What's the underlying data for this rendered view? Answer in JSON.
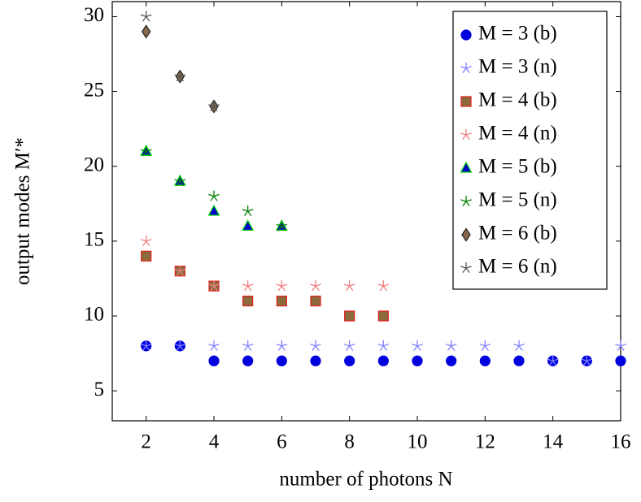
{
  "chart_data": {
    "type": "scatter",
    "xlabel": "number of photons N",
    "ylabel": "output modes M′*",
    "xlim": [
      1,
      16
    ],
    "ylim": [
      3,
      31
    ],
    "xticks": [
      2,
      4,
      6,
      8,
      10,
      12,
      14,
      16
    ],
    "yticks": [
      5,
      10,
      15,
      20,
      25,
      30
    ],
    "legend": "upper right",
    "series": [
      {
        "name": "M = 3 (b)",
        "marker": "circle",
        "color": "#0000dd",
        "edgecolor": "#0000dd",
        "x": [
          2,
          3,
          4,
          5,
          6,
          7,
          8,
          9,
          10,
          11,
          12,
          13,
          14,
          15,
          16
        ],
        "values": [
          8,
          8,
          7,
          7,
          7,
          7,
          7,
          7,
          7,
          7,
          7,
          7,
          7,
          7,
          7
        ]
      },
      {
        "name": "M = 3 (n)",
        "marker": "star",
        "color": "#8080ff",
        "edgecolor": "#8080ff",
        "x": [
          2,
          3,
          4,
          5,
          6,
          7,
          8,
          9,
          10,
          11,
          12,
          13,
          14,
          15,
          16
        ],
        "values": [
          8,
          8,
          8,
          8,
          8,
          8,
          8,
          8,
          8,
          8,
          8,
          8,
          7,
          7,
          8
        ]
      },
      {
        "name": "M = 4 (b)",
        "marker": "square",
        "color": "#8c6a3c",
        "edgecolor": "#e02020",
        "x": [
          2,
          3,
          4,
          5,
          6,
          7,
          8,
          9
        ],
        "values": [
          14,
          13,
          12,
          11,
          11,
          11,
          10,
          10
        ]
      },
      {
        "name": "M = 4 (n)",
        "marker": "star",
        "color": "#f08080",
        "edgecolor": "#f08080",
        "x": [
          2,
          3,
          4,
          5,
          6,
          7,
          8,
          9
        ],
        "values": [
          15,
          13,
          12,
          12,
          12,
          12,
          12,
          12
        ]
      },
      {
        "name": "M = 5 (b)",
        "marker": "triangle",
        "color": "#0000cc",
        "edgecolor": "#00dd00",
        "x": [
          2,
          3,
          4,
          5,
          6
        ],
        "values": [
          21,
          19,
          17,
          16,
          16
        ]
      },
      {
        "name": "M = 5 (n)",
        "marker": "star",
        "color": "#008000",
        "edgecolor": "#008000",
        "x": [
          2,
          3,
          4,
          5,
          6
        ],
        "values": [
          21,
          19,
          18,
          17,
          16
        ]
      },
      {
        "name": "M = 6 (b)",
        "marker": "diamond",
        "color": "#8b6a4a",
        "edgecolor": "#222222",
        "x": [
          2,
          3,
          4
        ],
        "values": [
          29,
          26,
          24
        ]
      },
      {
        "name": "M = 6 (n)",
        "marker": "star",
        "color": "#555555",
        "edgecolor": "#555555",
        "x": [
          2,
          3,
          4
        ],
        "values": [
          30,
          26,
          24
        ]
      }
    ]
  }
}
